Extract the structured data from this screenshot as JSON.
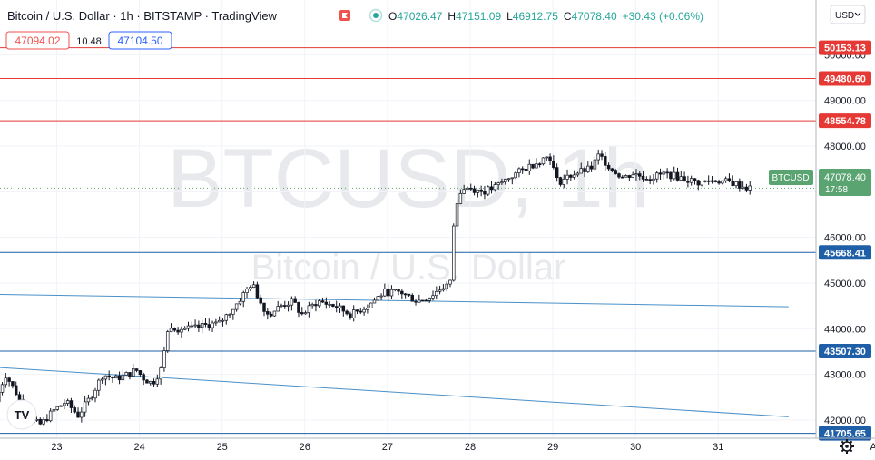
{
  "header": {
    "title": "Bitcoin / U.S. Dollar · 1h · BITSTAMP · TradingView",
    "ohlc": {
      "o_label": "O",
      "o": "47026.47",
      "h_label": "H",
      "h": "47151.09",
      "l_label": "L",
      "l": "46912.75",
      "c_label": "C",
      "c": "47078.40",
      "change": "+30.43 (+0.06%)"
    },
    "bid": "47094.02",
    "spread": "10.48",
    "ask": "47104.50",
    "currency": "USD"
  },
  "watermark": {
    "symbol": "BTCUSD, 1h",
    "name": "Bitcoin / U.S. Dollar"
  },
  "price_tag": {
    "label": "BTCUSD",
    "price": "47078.40",
    "countdown": "17:58"
  },
  "logo_text": "TV",
  "colors": {
    "up": "#26a69a",
    "down": "#ef5350",
    "candle": "#131722",
    "resistance": "#e53935",
    "support": "#1e5fa8",
    "trendline": "#4a90c8",
    "price_tag": "#5aa472",
    "red_label_bg": "#e53935",
    "blue_label_bg": "#1e5fa8"
  },
  "chart_data": {
    "type": "candlestick",
    "instrument": "Bitcoin / U.S. Dollar",
    "timeframe": "1h",
    "exchange": "BITSTAMP",
    "ylim": [
      41600,
      51200
    ],
    "y_ticks": [
      42000,
      43000,
      44000,
      45000,
      46000,
      47000,
      48000,
      49000,
      50000
    ],
    "y_tick_labels": [
      "42000.00",
      "43000.00",
      "44000.00",
      "45000.00",
      "46000.00",
      "47000.00",
      "48000.00",
      "49000.00",
      "50000.00"
    ],
    "x_ticks": [
      "23",
      "24",
      "25",
      "26",
      "27",
      "28",
      "29",
      "30",
      "31",
      "Apr"
    ],
    "x_tick_day_positions": [
      1,
      2,
      3,
      4,
      5,
      6,
      7,
      8,
      9,
      10.93
    ],
    "day_range": [
      0.3,
      11.3
    ],
    "horizontal_levels": [
      {
        "value": 50153.13,
        "label": "50153.13",
        "kind": "resistance"
      },
      {
        "value": 49480.6,
        "label": "49480.60",
        "kind": "resistance"
      },
      {
        "value": 48554.78,
        "label": "48554.78",
        "kind": "resistance"
      },
      {
        "value": 45668.41,
        "label": "45668.41",
        "kind": "support"
      },
      {
        "value": 43507.3,
        "label": "43507.30",
        "kind": "support"
      },
      {
        "value": 41705.65,
        "label": "41705.65",
        "kind": "support"
      }
    ],
    "trendlines": [
      {
        "day1": 0.3,
        "price1": 44750,
        "day2": 9.85,
        "price2": 44480
      },
      {
        "day1": 0.3,
        "price1": 43150,
        "day2": 9.85,
        "price2": 42070
      }
    ],
    "anchors": [
      [
        0.3,
        42400
      ],
      [
        0.42,
        43000
      ],
      [
        0.55,
        42600
      ],
      [
        0.7,
        42000
      ],
      [
        0.85,
        41900
      ],
      [
        1.0,
        42200
      ],
      [
        1.15,
        42400
      ],
      [
        1.3,
        42100
      ],
      [
        1.45,
        42500
      ],
      [
        1.6,
        43000
      ],
      [
        1.75,
        42900
      ],
      [
        1.9,
        43000
      ],
      [
        2.0,
        43100
      ],
      [
        2.1,
        42900
      ],
      [
        2.2,
        42800
      ],
      [
        2.3,
        43100
      ],
      [
        2.4,
        44100
      ],
      [
        2.5,
        44000
      ],
      [
        2.7,
        44000
      ],
      [
        2.9,
        44100
      ],
      [
        3.0,
        44100
      ],
      [
        3.2,
        44500
      ],
      [
        3.4,
        45000
      ],
      [
        3.5,
        44600
      ],
      [
        3.6,
        44300
      ],
      [
        3.75,
        44500
      ],
      [
        3.9,
        44600
      ],
      [
        4.0,
        44300
      ],
      [
        4.2,
        44600
      ],
      [
        4.4,
        44500
      ],
      [
        4.6,
        44300
      ],
      [
        4.8,
        44500
      ],
      [
        5.0,
        44800
      ],
      [
        5.2,
        44800
      ],
      [
        5.4,
        44600
      ],
      [
        5.55,
        44700
      ],
      [
        5.7,
        44900
      ],
      [
        5.8,
        45000
      ],
      [
        5.85,
        46500
      ],
      [
        5.92,
        47000
      ],
      [
        6.0,
        47100
      ],
      [
        6.2,
        47000
      ],
      [
        6.35,
        47100
      ],
      [
        6.5,
        47300
      ],
      [
        6.7,
        47500
      ],
      [
        6.9,
        47700
      ],
      [
        7.0,
        47800
      ],
      [
        7.1,
        47200
      ],
      [
        7.3,
        47400
      ],
      [
        7.5,
        47500
      ],
      [
        7.6,
        47800
      ],
      [
        7.75,
        47500
      ],
      [
        7.9,
        47300
      ],
      [
        8.0,
        47400
      ],
      [
        8.2,
        47300
      ],
      [
        8.4,
        47400
      ],
      [
        8.6,
        47300
      ],
      [
        8.8,
        47200
      ],
      [
        9.0,
        47250
      ],
      [
        9.2,
        47200
      ],
      [
        9.4,
        47078
      ]
    ]
  }
}
